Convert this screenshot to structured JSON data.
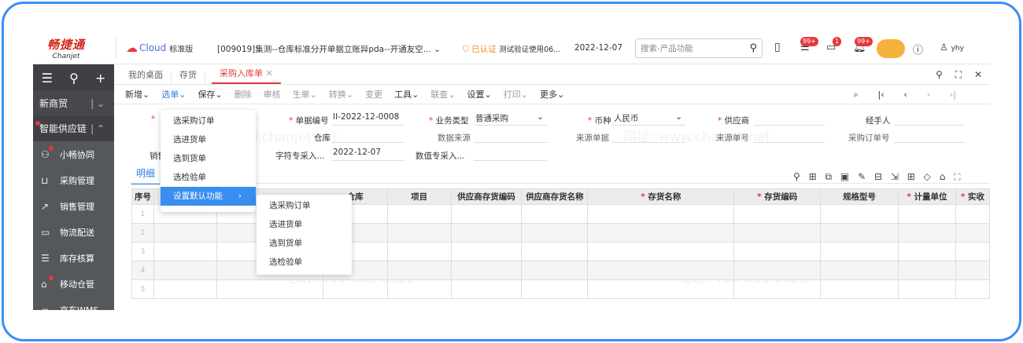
{
  "header": {
    "logo_cn": "畅捷通",
    "logo_en": "Chanjet",
    "product": "Cloud",
    "edition": "标准版",
    "account": "[009019]集测--仓库标准分开单据立账异pda--开通友空...",
    "verified": "已认证",
    "company": "测试验证使用06...",
    "date": "2022-12-07",
    "search_placeholder": "搜索-产品功能",
    "badges": {
      "todo": "99+",
      "message": "1",
      "notice": "99+"
    },
    "user": "yhy"
  },
  "sidebar": {
    "group1": "新商贸",
    "group2": "智能供应链",
    "items": [
      {
        "label": "小畅协同",
        "icon": "collab-icon"
      },
      {
        "label": "采购管理",
        "icon": "cart-icon"
      },
      {
        "label": "销售管理",
        "icon": "chart-icon"
      },
      {
        "label": "物流配送",
        "icon": "truck-icon"
      },
      {
        "label": "库存核算",
        "icon": "inventory-icon"
      },
      {
        "label": "移动仓管",
        "icon": "warehouse-icon"
      },
      {
        "label": "京东WMS",
        "icon": "wms-icon"
      }
    ]
  },
  "tabs": [
    "我的桌面",
    "存货",
    "采购入库单"
  ],
  "toolbar": [
    "新增",
    "选单",
    "保存",
    "删除",
    "审核",
    "生单",
    "转换",
    "变更",
    "工具",
    "联查",
    "设置",
    "打印",
    "更多"
  ],
  "form": {
    "doc_no_label": "单据编号",
    "doc_no": "II-2022-12-0008",
    "biz_type_label": "业务类型",
    "biz_type": "普通采购",
    "currency_label": "币种",
    "currency": "人民币",
    "supplier_label": "供应商",
    "handler_label": "经手人",
    "warehouse_label": "仓库",
    "data_source_label": "数据来源",
    "source_doc_label": "来源单据",
    "source_no_label": "来源单号",
    "po_no_label": "采购订单号",
    "sales_label": "销售",
    "char_field_label": "字符专采入...",
    "char_field": "2022-12-07",
    "num_field_label": "数值专采入..."
  },
  "detail_tab": "明细",
  "menu": {
    "items": [
      "选采购订单",
      "选进货单",
      "选到货单",
      "选检验单",
      "设置默认功能"
    ],
    "submenu": [
      "选采购订单",
      "选进货单",
      "选到货单",
      "选检验单"
    ]
  },
  "table": {
    "headers": [
      "序号",
      "",
      "",
      "仓库",
      "项目",
      "供应商存货编码",
      "供应商存货名称",
      "存货名称",
      "存货编码",
      "规格型号",
      "计量单位",
      "实收"
    ],
    "rows": [
      "1",
      "2",
      "3",
      "4",
      "5"
    ]
  },
  "watermark": [
    "电话: 400-665-0028",
    "网址: www.chanjet.net"
  ]
}
